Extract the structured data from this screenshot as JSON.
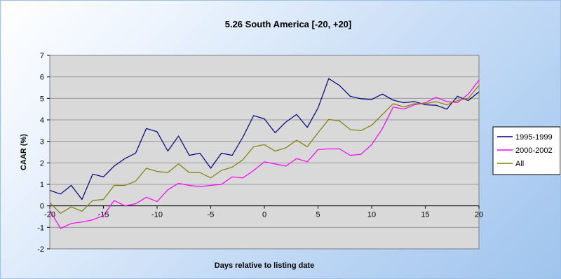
{
  "chart_data": {
    "type": "line",
    "title": "5.26 South America [-20, +20]",
    "xlabel": "Days relative to listing date",
    "ylabel": "CAAR (%)",
    "xlim": [
      -20,
      20
    ],
    "ylim": [
      -2,
      7
    ],
    "x_ticks": [
      "-20",
      "-15",
      "-10",
      "-5",
      "0",
      "5",
      "10",
      "15",
      "20"
    ],
    "y_ticks": [
      "-2",
      "-1",
      "0",
      "1",
      "2",
      "3",
      "4",
      "5",
      "6",
      "7"
    ],
    "grid": "horizontal",
    "legend_position": "right",
    "x": [
      -20,
      -19,
      -18,
      -17,
      -16,
      -15,
      -14,
      -13,
      -12,
      -11,
      -10,
      -9,
      -8,
      -7,
      -6,
      -5,
      -4,
      -3,
      -2,
      -1,
      0,
      1,
      2,
      3,
      4,
      5,
      6,
      7,
      8,
      9,
      10,
      11,
      12,
      13,
      14,
      15,
      16,
      17,
      18,
      19,
      20
    ],
    "series": [
      {
        "name": "1995-1999",
        "color": "#000080",
        "values": [
          0.72,
          0.55,
          0.95,
          0.3,
          1.48,
          1.35,
          1.85,
          2.2,
          2.45,
          3.6,
          3.45,
          2.55,
          3.25,
          2.35,
          2.45,
          1.75,
          2.45,
          2.35,
          3.2,
          4.2,
          4.05,
          3.4,
          3.9,
          4.25,
          3.65,
          4.55,
          5.92,
          5.6,
          5.1,
          4.98,
          4.95,
          5.2,
          4.92,
          4.8,
          4.85,
          4.7,
          4.68,
          4.5,
          5.1,
          4.9,
          5.3
        ]
      },
      {
        "name": "2000-2002",
        "color": "#ff00ff",
        "values": [
          -0.2,
          -1.05,
          -0.82,
          -0.75,
          -0.65,
          -0.45,
          0.25,
          0.0,
          0.1,
          0.4,
          0.2,
          0.75,
          1.05,
          0.95,
          0.9,
          0.95,
          1.0,
          1.35,
          1.3,
          1.65,
          2.05,
          1.95,
          1.85,
          2.2,
          2.05,
          2.62,
          2.65,
          2.65,
          2.35,
          2.4,
          2.85,
          3.6,
          4.6,
          4.5,
          4.7,
          4.8,
          5.05,
          4.85,
          4.8,
          5.2,
          5.85
        ]
      },
      {
        "name": "All",
        "color": "#808000",
        "values": [
          0.15,
          -0.35,
          -0.05,
          -0.25,
          0.25,
          0.3,
          0.95,
          0.95,
          1.15,
          1.75,
          1.6,
          1.55,
          1.95,
          1.55,
          1.55,
          1.3,
          1.65,
          1.8,
          2.15,
          2.75,
          2.85,
          2.55,
          2.7,
          3.05,
          2.75,
          3.4,
          4.02,
          3.95,
          3.55,
          3.5,
          3.75,
          4.25,
          4.75,
          4.6,
          4.75,
          4.75,
          4.85,
          4.7,
          4.9,
          5.0,
          5.6
        ]
      }
    ]
  }
}
